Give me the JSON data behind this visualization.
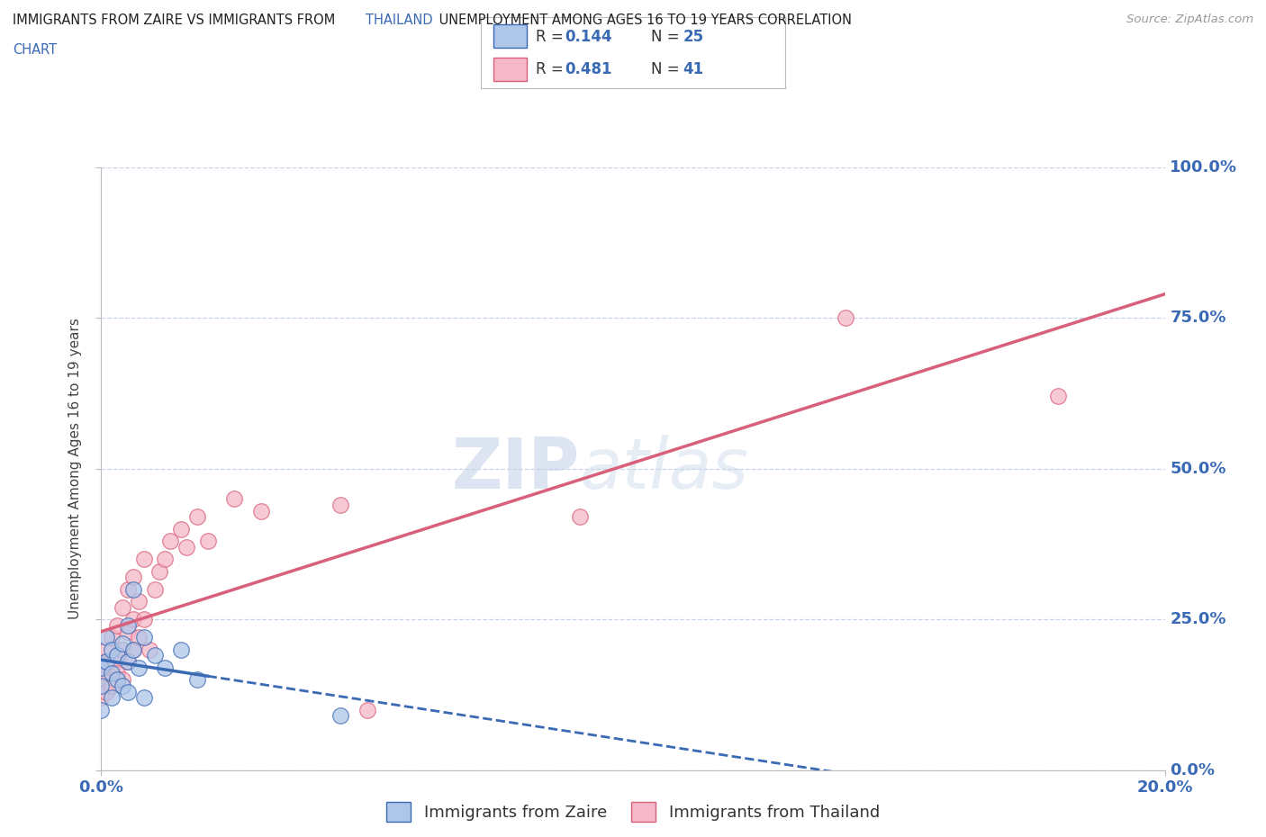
{
  "title_line1": "IMMIGRANTS FROM ZAIRE VS IMMIGRANTS FROM THAILAND UNEMPLOYMENT AMONG AGES 16 TO 19 YEARS CORRELATION",
  "title_line2": "CHART",
  "source_text": "Source: ZipAtlas.com",
  "ylabel": "Unemployment Among Ages 16 to 19 years",
  "xlim": [
    0.0,
    0.2
  ],
  "ylim": [
    0.0,
    1.0
  ],
  "xtick_labels": [
    "0.0%",
    "20.0%"
  ],
  "ytick_labels": [
    "0.0%",
    "25.0%",
    "50.0%",
    "75.0%",
    "100.0%"
  ],
  "ytick_values": [
    0.0,
    0.25,
    0.5,
    0.75,
    1.0
  ],
  "watermark": "ZIPatlas",
  "zaire_color": "#aec6e8",
  "zaire_line_color": "#3b6ab5",
  "thailand_color": "#f5b8c8",
  "thailand_line_color": "#d9607a",
  "zaire_R": 0.144,
  "zaire_N": 25,
  "thailand_R": 0.481,
  "thailand_N": 41,
  "zaire_points_x": [
    0.0,
    0.0,
    0.0,
    0.001,
    0.001,
    0.002,
    0.002,
    0.002,
    0.003,
    0.003,
    0.004,
    0.004,
    0.005,
    0.005,
    0.005,
    0.006,
    0.006,
    0.007,
    0.008,
    0.008,
    0.01,
    0.012,
    0.015,
    0.018,
    0.045
  ],
  "zaire_points_y": [
    0.17,
    0.14,
    0.1,
    0.18,
    0.22,
    0.16,
    0.2,
    0.12,
    0.19,
    0.15,
    0.21,
    0.14,
    0.18,
    0.24,
    0.13,
    0.2,
    0.3,
    0.17,
    0.22,
    0.12,
    0.19,
    0.17,
    0.2,
    0.15,
    0.09
  ],
  "thailand_points_x": [
    0.0,
    0.0,
    0.0,
    0.001,
    0.001,
    0.001,
    0.002,
    0.002,
    0.002,
    0.003,
    0.003,
    0.003,
    0.004,
    0.004,
    0.004,
    0.005,
    0.005,
    0.005,
    0.006,
    0.006,
    0.006,
    0.007,
    0.007,
    0.008,
    0.008,
    0.009,
    0.01,
    0.011,
    0.012,
    0.013,
    0.015,
    0.016,
    0.018,
    0.02,
    0.025,
    0.03,
    0.045,
    0.05,
    0.09,
    0.14,
    0.18
  ],
  "thailand_points_y": [
    0.15,
    0.12,
    0.18,
    0.16,
    0.2,
    0.13,
    0.17,
    0.22,
    0.14,
    0.19,
    0.24,
    0.16,
    0.2,
    0.27,
    0.15,
    0.18,
    0.23,
    0.3,
    0.2,
    0.25,
    0.32,
    0.22,
    0.28,
    0.25,
    0.35,
    0.2,
    0.3,
    0.33,
    0.35,
    0.38,
    0.4,
    0.37,
    0.42,
    0.38,
    0.45,
    0.43,
    0.44,
    0.1,
    0.42,
    0.75,
    0.62
  ],
  "legend_label_zaire": "Immigrants from Zaire",
  "legend_label_thailand": "Immigrants from Thailand",
  "background_color": "#ffffff",
  "grid_color": "#c8d4e8",
  "title_color": "#222222",
  "title_highlight_color": "#3b6ab5",
  "axis_label_color": "#444444",
  "tick_color": "#3b6ab5",
  "legend_r_color": "#333333",
  "legend_n_color": "#3b6ab5"
}
